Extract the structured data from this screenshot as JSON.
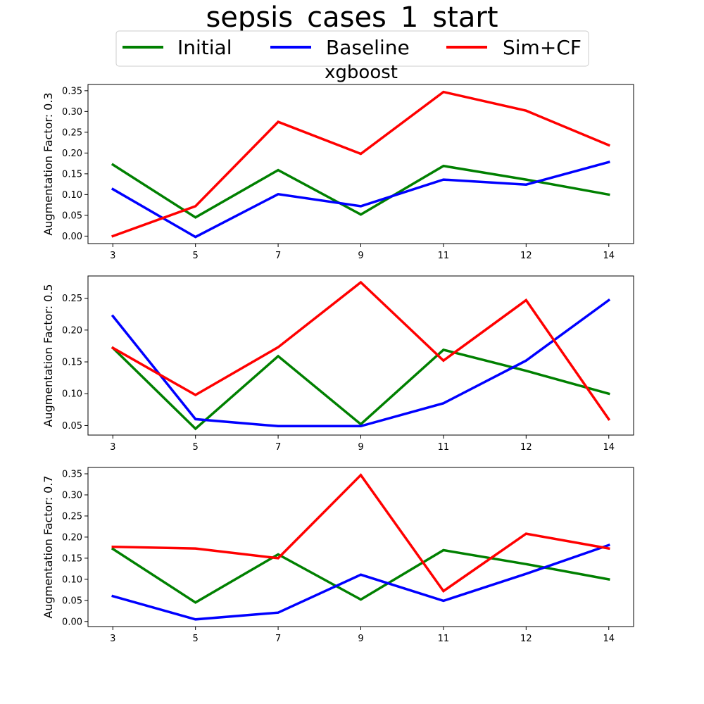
{
  "figure": {
    "title": "sepsis_cases_1_start",
    "subtitle": "xgboost"
  },
  "legend": {
    "placement": "top-center",
    "entries": [
      {
        "label": "Initial",
        "color": "#008000"
      },
      {
        "label": "Baseline",
        "color": "#0000ff"
      },
      {
        "label": "Sim+CF",
        "color": "#ff0000"
      }
    ]
  },
  "chart_data": [
    {
      "type": "line",
      "ylabel": "Augmentation Factor: 0.3",
      "x": [
        "3",
        "5",
        "7",
        "9",
        "11",
        "12",
        "14"
      ],
      "ylim": [
        -0.018,
        0.365
      ],
      "yticks": [
        "0.00",
        "0.05",
        "0.10",
        "0.15",
        "0.20",
        "0.25",
        "0.30",
        "0.35"
      ],
      "series": [
        {
          "name": "Initial",
          "color": "#008000",
          "values": [
            0.172,
            0.045,
            0.159,
            0.052,
            0.169,
            0.136,
            0.1
          ]
        },
        {
          "name": "Baseline",
          "color": "#0000ff",
          "values": [
            0.113,
            -0.002,
            0.101,
            0.072,
            0.136,
            0.124,
            0.178
          ]
        },
        {
          "name": "Sim+CF",
          "color": "#ff0000",
          "values": [
            0.0,
            0.072,
            0.275,
            0.198,
            0.347,
            0.302,
            0.219
          ]
        }
      ]
    },
    {
      "type": "line",
      "ylabel": "Augmentation Factor: 0.5",
      "x": [
        "3",
        "5",
        "7",
        "9",
        "11",
        "12",
        "14"
      ],
      "ylim": [
        0.035,
        0.285
      ],
      "yticks": [
        "0.05",
        "0.10",
        "0.15",
        "0.20",
        "0.25"
      ],
      "series": [
        {
          "name": "Initial",
          "color": "#008000",
          "values": [
            0.172,
            0.045,
            0.159,
            0.052,
            0.169,
            0.136,
            0.1
          ]
        },
        {
          "name": "Baseline",
          "color": "#0000ff",
          "values": [
            0.222,
            0.06,
            0.049,
            0.049,
            0.085,
            0.152,
            0.247
          ]
        },
        {
          "name": "Sim+CF",
          "color": "#ff0000",
          "values": [
            0.172,
            0.098,
            0.173,
            0.275,
            0.152,
            0.247,
            0.06
          ]
        }
      ]
    },
    {
      "type": "line",
      "ylabel": "Augmentation Factor: 0.7",
      "x": [
        "3",
        "5",
        "7",
        "9",
        "11",
        "12",
        "14"
      ],
      "ylim": [
        -0.012,
        0.365
      ],
      "yticks": [
        "0.00",
        "0.05",
        "0.10",
        "0.15",
        "0.20",
        "0.25",
        "0.30",
        "0.35"
      ],
      "series": [
        {
          "name": "Initial",
          "color": "#008000",
          "values": [
            0.172,
            0.045,
            0.159,
            0.052,
            0.169,
            0.136,
            0.1
          ]
        },
        {
          "name": "Baseline",
          "color": "#0000ff",
          "values": [
            0.06,
            0.005,
            0.021,
            0.111,
            0.049,
            0.113,
            0.181
          ]
        },
        {
          "name": "Sim+CF",
          "color": "#ff0000",
          "values": [
            0.177,
            0.173,
            0.15,
            0.347,
            0.072,
            0.208,
            0.173
          ]
        }
      ]
    }
  ]
}
